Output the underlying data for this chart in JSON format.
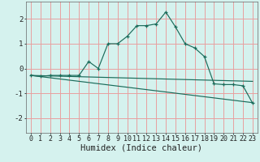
{
  "title": "",
  "xlabel": "Humidex (Indice chaleur)",
  "bg_color": "#d5f2ee",
  "grid_color": "#e8a0a0",
  "line_color": "#1a6b5a",
  "xlim": [
    -0.5,
    23.5
  ],
  "ylim": [
    -2.6,
    2.7
  ],
  "yticks": [
    -2,
    -1,
    0,
    1,
    2
  ],
  "xticks": [
    0,
    1,
    2,
    3,
    4,
    5,
    6,
    7,
    8,
    9,
    10,
    11,
    12,
    13,
    14,
    15,
    16,
    17,
    18,
    19,
    20,
    21,
    22,
    23
  ],
  "main_x": [
    0,
    1,
    2,
    3,
    4,
    5,
    6,
    7,
    8,
    9,
    10,
    11,
    12,
    13,
    14,
    15,
    16,
    17,
    18,
    19,
    20,
    21,
    22,
    23
  ],
  "main_y": [
    -0.28,
    -0.32,
    -0.28,
    -0.28,
    -0.28,
    -0.28,
    0.28,
    0.0,
    1.0,
    1.0,
    1.3,
    1.73,
    1.73,
    1.8,
    2.28,
    1.68,
    1.0,
    0.83,
    0.48,
    -0.62,
    -0.65,
    -0.65,
    -0.7,
    -1.4
  ],
  "trend1_x": [
    0,
    23
  ],
  "trend1_y": [
    -0.28,
    -0.52
  ],
  "trend2_x": [
    0,
    23
  ],
  "trend2_y": [
    -0.28,
    -1.38
  ],
  "xlabel_fontsize": 7.5,
  "tick_fontsize": 6.0
}
